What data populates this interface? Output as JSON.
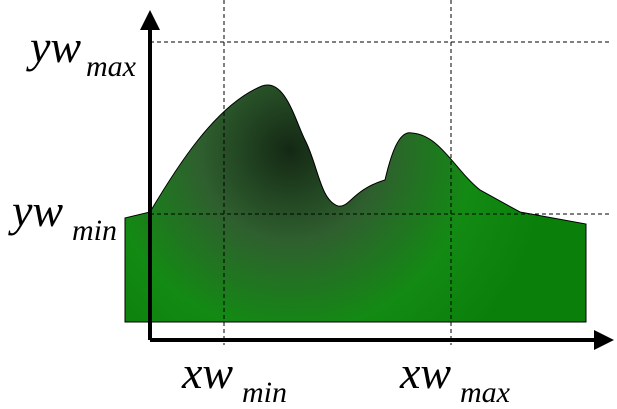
{
  "labels": [
    {
      "main": "yw",
      "sub": "max"
    },
    {
      "main": "yw",
      "sub": "min"
    },
    {
      "main": "xw",
      "sub": "min"
    },
    {
      "main": "xw",
      "sub": "max"
    }
  ]
}
